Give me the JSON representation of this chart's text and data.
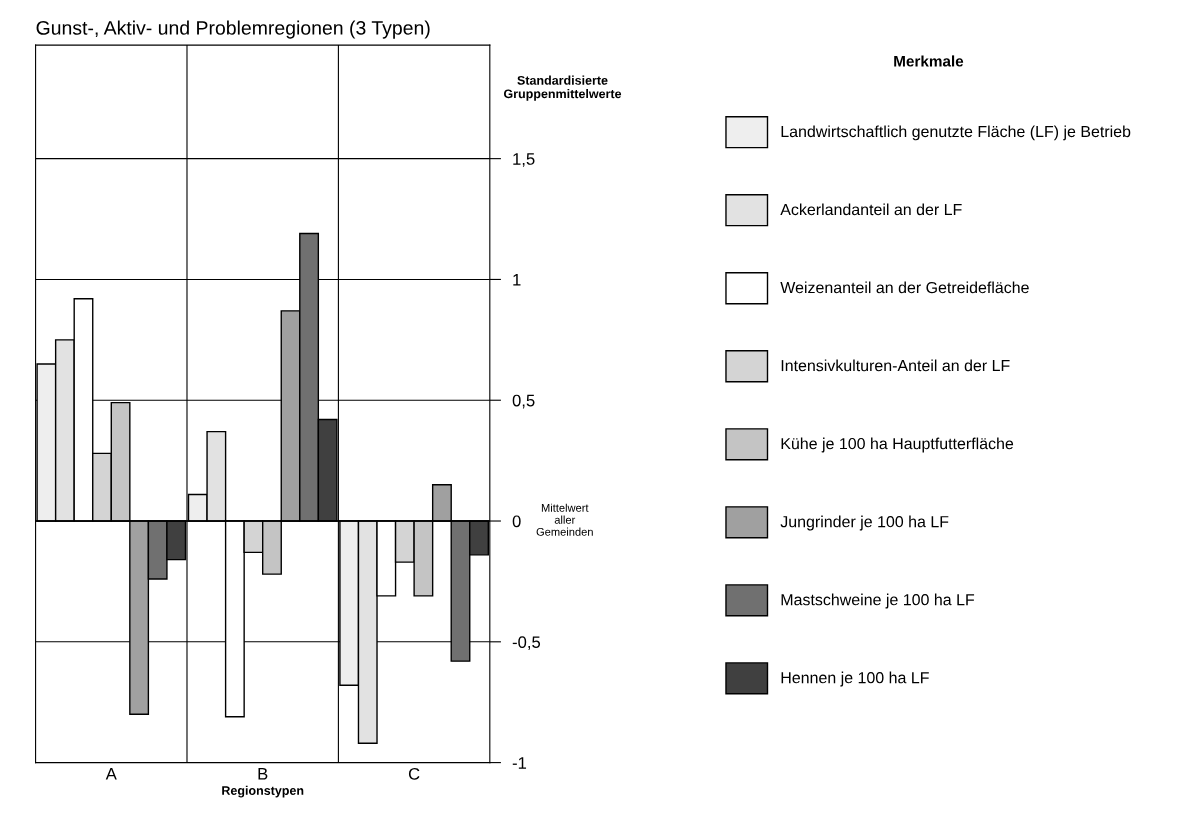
{
  "chart_data": {
    "type": "bar",
    "title": "Gunst-, Aktiv- und Problemregionen (3 Typen)",
    "xlabel": "Regionstypen",
    "ylabel": "Standardisierte Gruppenmittelwerte",
    "legend_title": "Merkmale",
    "annotations": [
      "Mittelwert aller Gemeinden"
    ],
    "categories": [
      "A",
      "B",
      "C"
    ],
    "series": [
      {
        "name": "Landwirtschaftlich genutzte Fläche (LF) je Betrieb",
        "color": "#eeeeee",
        "values": [
          0.65,
          0.11,
          -0.68
        ]
      },
      {
        "name": "Ackerlandanteil an der LF",
        "color": "#e2e2e2",
        "values": [
          0.75,
          0.37,
          -0.92
        ]
      },
      {
        "name": "Weizenanteil an der Getreidefläche",
        "color": "#ffffff",
        "values": [
          0.92,
          -0.81,
          -0.31
        ]
      },
      {
        "name": "Intensivkulturen-Anteil an der LF",
        "color": "#d4d4d4",
        "values": [
          0.28,
          -0.13,
          -0.17
        ]
      },
      {
        "name": "Kühe je 100 ha Hauptfutterfläche",
        "color": "#c4c4c4",
        "values": [
          0.49,
          -0.22,
          -0.31
        ]
      },
      {
        "name": "Jungrinder je 100 ha LF",
        "color": "#a0a0a0",
        "values": [
          -0.8,
          0.87,
          0.15
        ]
      },
      {
        "name": "Mastschweine je 100 ha LF",
        "color": "#707070",
        "values": [
          -0.24,
          1.19,
          -0.58
        ]
      },
      {
        "name": "Hennen je 100 ha LF",
        "color": "#404040",
        "values": [
          -0.16,
          0.42,
          -0.14
        ]
      }
    ],
    "ylim": [
      -1,
      1.97
    ],
    "yticks": [
      {
        "value": -1,
        "label": "-1"
      },
      {
        "value": -0.5,
        "label": "-0,5"
      },
      0,
      {
        "value": 0.5,
        "label": "0,5"
      },
      1,
      {
        "value": 1.5,
        "label": "1,5"
      }
    ],
    "grid": "y",
    "legend": "right"
  }
}
